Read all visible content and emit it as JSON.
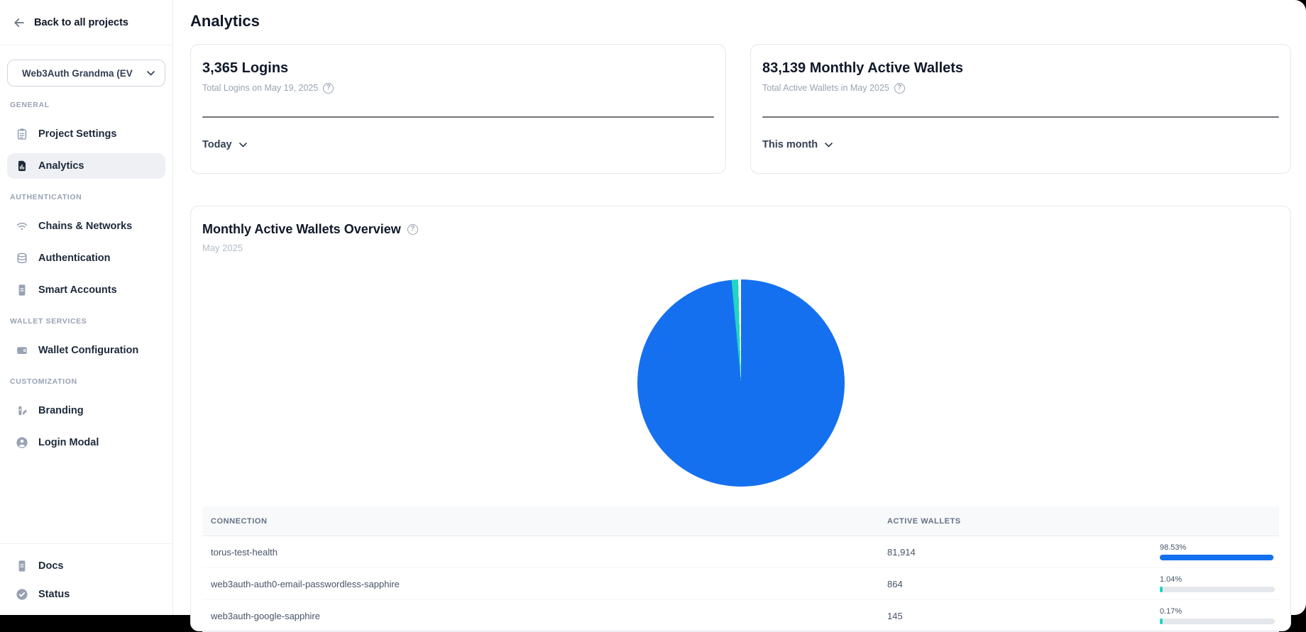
{
  "sidebar": {
    "back_label": "Back to all projects",
    "project_selector": {
      "value": "Web3Auth Grandma (EV"
    },
    "sections": [
      {
        "label": "GENERAL",
        "items": [
          {
            "label": "Project Settings",
            "icon": "clipboard-icon",
            "active": false
          },
          {
            "label": "Analytics",
            "icon": "bar-chart-doc-icon",
            "active": true
          }
        ]
      },
      {
        "label": "AUTHENTICATION",
        "items": [
          {
            "label": "Chains & Networks",
            "icon": "wifi-icon",
            "active": false
          },
          {
            "label": "Authentication",
            "icon": "database-icon",
            "active": false
          },
          {
            "label": "Smart Accounts",
            "icon": "file-icon",
            "active": false
          }
        ]
      },
      {
        "label": "WALLET SERVICES",
        "items": [
          {
            "label": "Wallet Configuration",
            "icon": "wallet-icon",
            "active": false
          }
        ]
      },
      {
        "label": "CUSTOMIZATION",
        "items": [
          {
            "label": "Branding",
            "icon": "brush-icon",
            "active": false
          },
          {
            "label": "Login Modal",
            "icon": "user-circle-icon",
            "active": false
          }
        ]
      }
    ],
    "footer_items": [
      {
        "label": "Docs",
        "icon": "file-icon"
      },
      {
        "label": "Status",
        "icon": "check-circle-icon"
      }
    ]
  },
  "header": {
    "title": "Analytics"
  },
  "stat_cards": [
    {
      "title": "3,365 Logins",
      "subtitle": "Total Logins on May 19, 2025",
      "range_label": "Today"
    },
    {
      "title": "83,139 Monthly Active Wallets",
      "subtitle": "Total Active Wallets in May 2025",
      "range_label": "This month"
    }
  ],
  "overview_card": {
    "title": "Monthly Active Wallets Overview",
    "subtitle": "May 2025"
  },
  "colors": {
    "primary_blue": "#1570ef",
    "teal": "#20d5c4",
    "bar_track": "#e4e7ec"
  },
  "chart_data": {
    "type": "pie",
    "title": "Monthly Active Wallets Overview",
    "subtitle": "May 2025",
    "total_active_wallets": 83139,
    "legend_position": "none",
    "slices": [
      {
        "label": "torus-test-health",
        "value": 81914,
        "pct": 98.53,
        "color": "#1570ef"
      },
      {
        "label": "web3auth-auth0-email-passwordless-sapphire",
        "value": 864,
        "pct": 1.04,
        "color": "#20d5c4"
      },
      {
        "label": "web3auth-google-sapphire",
        "value": 145,
        "pct": 0.17,
        "color": "#ffffff"
      }
    ],
    "table": {
      "columns": [
        "CONNECTION",
        "ACTIVE WALLETS"
      ],
      "rows": [
        {
          "connection": "torus-test-health",
          "active_wallets": "81,914",
          "pct_label": "98.53%",
          "pct": 98.53,
          "bar_color": "#1570ef"
        },
        {
          "connection": "web3auth-auth0-email-passwordless-sapphire",
          "active_wallets": "864",
          "pct_label": "1.04%",
          "pct": 1.04,
          "bar_color": "#20d5c4"
        },
        {
          "connection": "web3auth-google-sapphire",
          "active_wallets": "145",
          "pct_label": "0.17%",
          "pct": 0.17,
          "bar_color": "#20d5c4"
        }
      ]
    }
  }
}
